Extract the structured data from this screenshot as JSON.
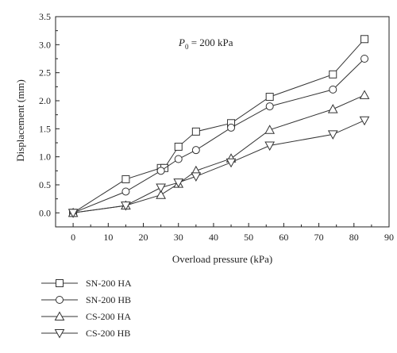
{
  "chart_data": {
    "type": "line",
    "xlabel": "Overload pressure (kPa)",
    "ylabel": "Displacement (mm)",
    "xlim": [
      -5,
      90
    ],
    "ylim": [
      -0.25,
      3.5
    ],
    "xticks": [
      0,
      10,
      20,
      30,
      40,
      50,
      60,
      70,
      80,
      90
    ],
    "yticks": [
      0.0,
      0.5,
      1.0,
      1.5,
      2.0,
      2.5,
      3.0,
      3.5
    ],
    "annotation": {
      "prefix": "P",
      "subscript": "0",
      "suffix": " = 200 kPa"
    },
    "legend_position": "below-left",
    "grid": false,
    "series": [
      {
        "name": "SN-200 HA",
        "marker": "square",
        "x": [
          0,
          15,
          25,
          26,
          30,
          35,
          45,
          56,
          74,
          83
        ],
        "y": [
          0.0,
          0.6,
          0.8,
          0.8,
          1.18,
          1.45,
          1.6,
          2.07,
          2.47,
          3.1
        ]
      },
      {
        "name": "SN-200 HB",
        "marker": "circle",
        "x": [
          0,
          15,
          25,
          30,
          35,
          45,
          56,
          74,
          83
        ],
        "y": [
          0.0,
          0.38,
          0.75,
          0.96,
          1.12,
          1.52,
          1.9,
          2.2,
          2.75
        ]
      },
      {
        "name": "CS-200 HA",
        "marker": "triangle-up",
        "x": [
          0,
          15,
          25,
          30,
          35,
          45,
          56,
          74,
          83
        ],
        "y": [
          0.0,
          0.13,
          0.32,
          0.52,
          0.75,
          0.97,
          1.48,
          1.85,
          2.1
        ]
      },
      {
        "name": "CS-200 HB",
        "marker": "triangle-down",
        "x": [
          0,
          15,
          25,
          30,
          35,
          45,
          56,
          74,
          83
        ],
        "y": [
          0.0,
          0.13,
          0.45,
          0.54,
          0.65,
          0.9,
          1.2,
          1.4,
          1.65
        ]
      }
    ]
  }
}
